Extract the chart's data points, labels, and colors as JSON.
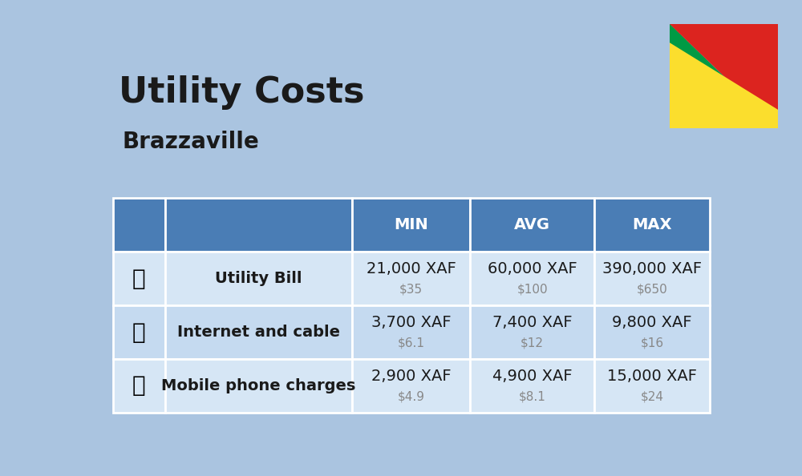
{
  "title": "Utility Costs",
  "subtitle": "Brazzaville",
  "background_color": "#aac4e0",
  "header_bg_color": "#4a7db5",
  "header_text_color": "#ffffff",
  "row_bg_color_1": "#d6e6f5",
  "row_bg_color_2": "#c5daf0",
  "table_border_color": "#ffffff",
  "col_headers": [
    "MIN",
    "AVG",
    "MAX"
  ],
  "rows": [
    {
      "label": "Utility Bill",
      "min_xaf": "21,000 XAF",
      "min_usd": "$35",
      "avg_xaf": "60,000 XAF",
      "avg_usd": "$100",
      "max_xaf": "390,000 XAF",
      "max_usd": "$650"
    },
    {
      "label": "Internet and cable",
      "min_xaf": "3,700 XAF",
      "min_usd": "$6.1",
      "avg_xaf": "7,400 XAF",
      "avg_usd": "$12",
      "max_xaf": "9,800 XAF",
      "max_usd": "$16"
    },
    {
      "label": "Mobile phone charges",
      "min_xaf": "2,900 XAF",
      "min_usd": "$4.9",
      "avg_xaf": "4,900 XAF",
      "avg_usd": "$8.1",
      "max_xaf": "15,000 XAF",
      "max_usd": "$24"
    }
  ],
  "flag_green": "#009a44",
  "flag_yellow": "#fbde2d",
  "flag_red": "#dc241f",
  "title_fontsize": 32,
  "subtitle_fontsize": 20,
  "header_fontsize": 14,
  "label_fontsize": 14,
  "value_fontsize": 14,
  "usd_fontsize": 11,
  "usd_color": "#888888",
  "label_color": "#1a1a1a"
}
